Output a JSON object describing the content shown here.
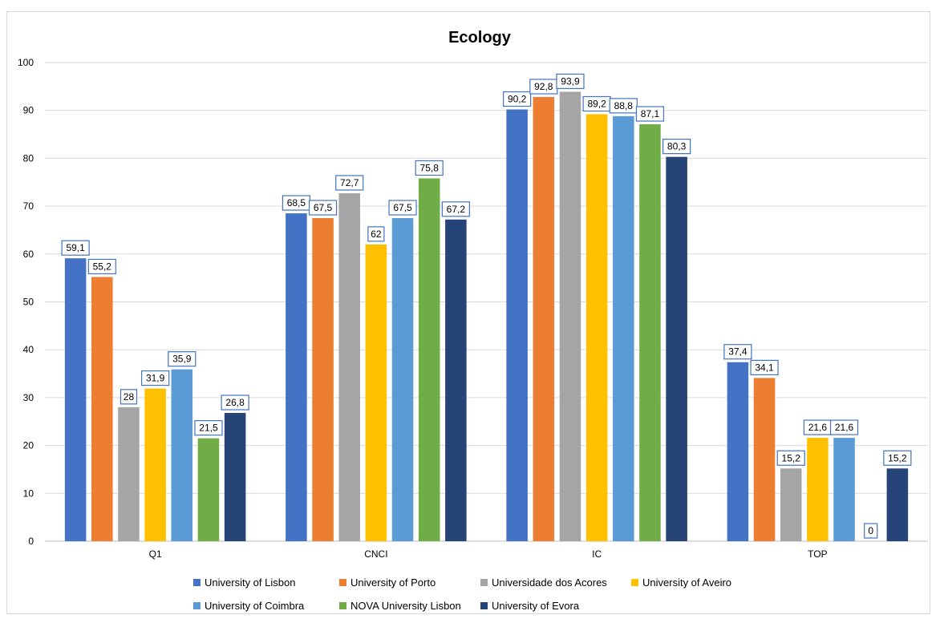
{
  "chart_data": {
    "type": "bar",
    "title": "Ecology",
    "xlabel": "",
    "ylabel": "",
    "ylim": [
      0,
      100
    ],
    "yticks": [
      0,
      10,
      20,
      30,
      40,
      50,
      60,
      70,
      80,
      90,
      100
    ],
    "grid": true,
    "legend_position": "bottom",
    "categories": [
      "Q1",
      "CNCI",
      "IC",
      "TOP"
    ],
    "series": [
      {
        "name": "University of Lisbon",
        "color": "#4472c4",
        "values": [
          59.1,
          68.5,
          90.2,
          37.4
        ],
        "labels": [
          "59,1",
          "68,5",
          "90,2",
          "37,4"
        ]
      },
      {
        "name": "University of Porto",
        "color": "#ed7d31",
        "values": [
          55.2,
          67.5,
          92.8,
          34.1
        ],
        "labels": [
          "55,2",
          "67,5",
          "92,8",
          "34,1"
        ]
      },
      {
        "name": "Universidade dos Acores",
        "color": "#a5a5a5",
        "values": [
          28,
          72.7,
          93.9,
          15.2
        ],
        "labels": [
          "28",
          "72,7",
          "93,9",
          "15,2"
        ]
      },
      {
        "name": "University of Aveiro",
        "color": "#ffc000",
        "values": [
          31.9,
          62,
          89.2,
          21.6
        ],
        "labels": [
          "31,9",
          "62",
          "89,2",
          "21,6"
        ]
      },
      {
        "name": "University of Coimbra",
        "color": "#5b9bd5",
        "values": [
          35.9,
          67.5,
          88.8,
          21.6
        ],
        "labels": [
          "35,9",
          "67,5",
          "88,8",
          "21,6"
        ]
      },
      {
        "name": "NOVA University Lisbon",
        "color": "#70ad47",
        "values": [
          21.5,
          75.8,
          87.1,
          0
        ],
        "labels": [
          "21,5",
          "75,8",
          "87,1",
          "0"
        ]
      },
      {
        "name": "University of Evora",
        "color": "#264478",
        "values": [
          26.8,
          67.2,
          80.3,
          15.2
        ],
        "labels": [
          "26,8",
          "67,2",
          "80,3",
          "15,2"
        ]
      }
    ]
  }
}
